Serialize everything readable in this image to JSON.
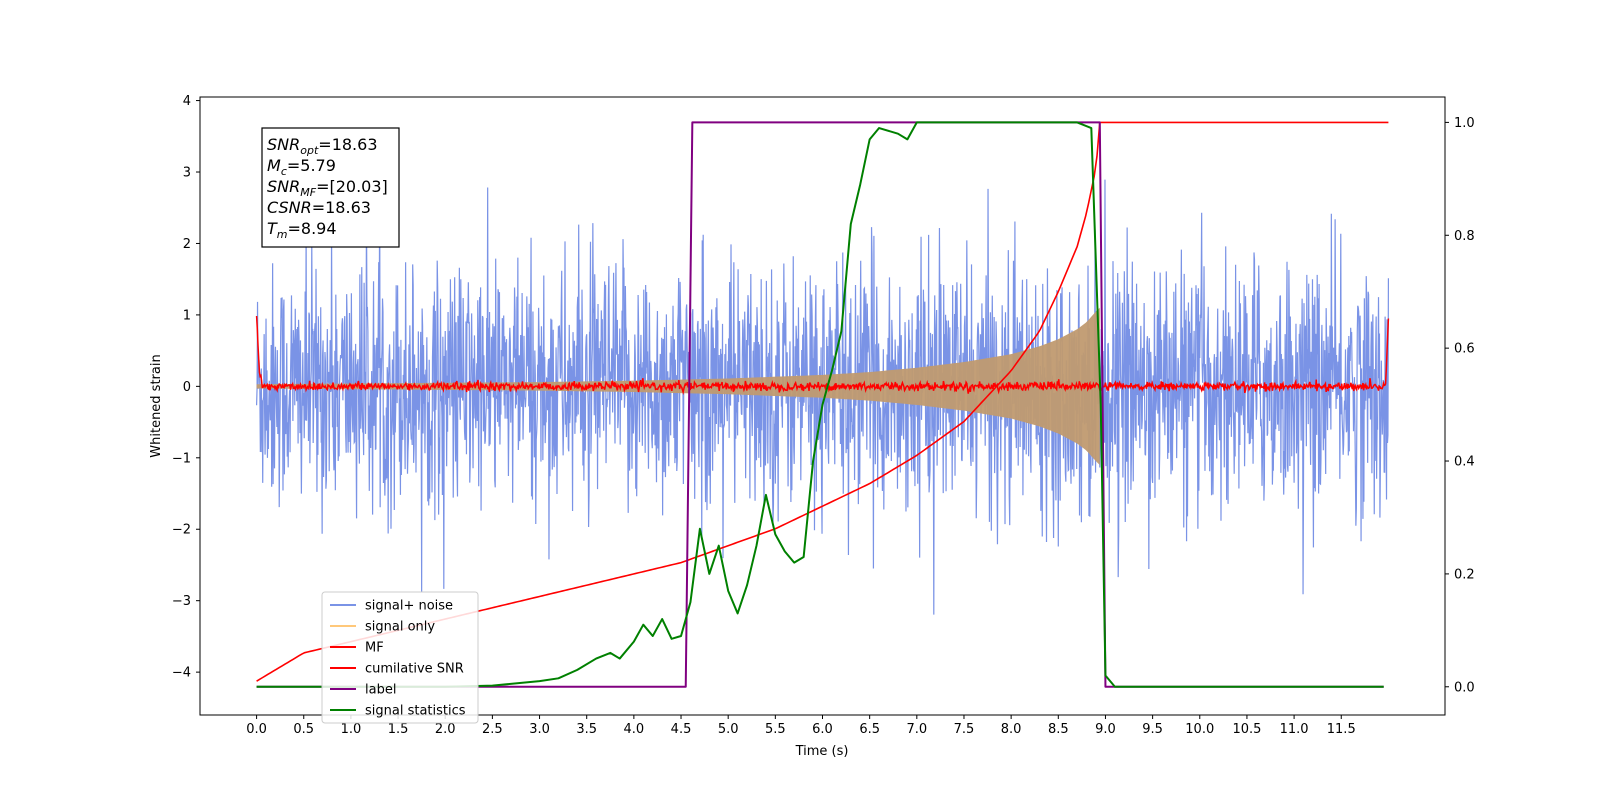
{
  "chart_data": {
    "type": "line",
    "xlabel": "Time (s)",
    "ylabel": "Whitened strain",
    "xlim": [
      -0.6,
      12.6
    ],
    "ylim": [
      -4.6,
      4.05
    ],
    "y2lim": [
      -0.05,
      1.045
    ],
    "x_ticks": [
      0.0,
      0.5,
      1.0,
      1.5,
      2.0,
      2.5,
      3.0,
      3.5,
      4.0,
      4.5,
      5.0,
      5.5,
      6.0,
      6.5,
      7.0,
      7.5,
      8.0,
      8.5,
      9.0,
      9.5,
      10.0,
      10.5,
      11.0,
      11.5
    ],
    "x_tick_labels": [
      "0.0",
      "0.5",
      "1.0",
      "1.5",
      "2.0",
      "2.5",
      "3.0",
      "3.5",
      "4.0",
      "4.5",
      "5.0",
      "5.5",
      "6.0",
      "6.5",
      "7.0",
      "7.5",
      "8.0",
      "8.5",
      "9.0",
      "9.5",
      "10.0",
      "10.5",
      "11.0",
      "11.5"
    ],
    "y_ticks": [
      4,
      3,
      2,
      1,
      0,
      -1,
      -2,
      -3,
      -4
    ],
    "y_tick_labels": [
      "4",
      "3",
      "2",
      "1",
      "0",
      "−1",
      "−2",
      "−3",
      "−4"
    ],
    "y2_ticks": [
      1.0,
      0.8,
      0.6,
      0.4,
      0.2,
      0.0
    ],
    "y2_tick_labels": [
      "1.0",
      "0.8",
      "0.6",
      "0.4",
      "0.2",
      "0.0"
    ],
    "annotation": {
      "lines": [
        {
          "base": "SNR",
          "sub": "opt",
          "value": "=18.63"
        },
        {
          "base": "M",
          "sub": "c",
          "value": "=5.79"
        },
        {
          "base": "SNR",
          "sub": "MF",
          "value": "=[20.03]"
        },
        {
          "base": "CSNR",
          "sub": "",
          "value": "=18.63"
        },
        {
          "base": "T",
          "sub": "m",
          "value": "=8.94"
        }
      ]
    },
    "legend": {
      "placement": "lower-left",
      "entries": [
        {
          "label": "signal+ noise",
          "color": "#7a93e6"
        },
        {
          "label": "signal only",
          "color": "#ffc87a"
        },
        {
          "label": "MF",
          "color": "#ff0000"
        },
        {
          "label": "cumilative SNR",
          "color": "#ff0000"
        },
        {
          "label": "label",
          "color": "#800080"
        },
        {
          "label": "signal statistics",
          "color": "#008000"
        }
      ]
    },
    "series": [
      {
        "name": "signal+ noise",
        "axis": "left",
        "color": "#7a93e6",
        "description_range": [
          0.0,
          12.0
        ],
        "approx_envelope": [
          -2.2,
          2.2
        ],
        "approx_extremes": [
          -4.15,
          3.65
        ]
      },
      {
        "name": "signal only",
        "axis": "left",
        "color": "#c09a70",
        "envelope_x": [
          0.0,
          1.0,
          2.0,
          3.0,
          4.0,
          5.0,
          6.0,
          6.5,
          7.0,
          7.5,
          8.0,
          8.3,
          8.5,
          8.7,
          8.8,
          8.9,
          8.94
        ],
        "envelope_amplitude": [
          0.03,
          0.04,
          0.05,
          0.06,
          0.08,
          0.11,
          0.16,
          0.2,
          0.26,
          0.34,
          0.45,
          0.56,
          0.66,
          0.8,
          0.9,
          1.05,
          1.1
        ]
      },
      {
        "name": "MF",
        "axis": "left",
        "color": "#ff0000",
        "x": [
          0.0,
          0.03,
          0.06,
          12.0
        ],
        "y": [
          1.0,
          0.2,
          0.0,
          0.0
        ],
        "noise_amplitude": 0.05
      },
      {
        "name": "cumilative SNR",
        "axis": "right",
        "color": "#ff0000",
        "x": [
          0.0,
          0.5,
          1.0,
          1.5,
          2.0,
          2.5,
          3.0,
          3.5,
          4.0,
          4.5,
          5.0,
          5.5,
          6.0,
          6.5,
          7.0,
          7.5,
          8.0,
          8.3,
          8.5,
          8.7,
          8.8,
          8.9,
          8.94,
          12.0
        ],
        "y": [
          0.01,
          0.06,
          0.08,
          0.1,
          0.12,
          0.14,
          0.16,
          0.18,
          0.2,
          0.22,
          0.25,
          0.28,
          0.32,
          0.36,
          0.41,
          0.47,
          0.56,
          0.63,
          0.7,
          0.78,
          0.84,
          0.92,
          1.0,
          1.0
        ]
      },
      {
        "name": "label",
        "axis": "right",
        "color": "#800080",
        "x": [
          0.0,
          4.55,
          4.62,
          8.94,
          9.0,
          11.95
        ],
        "y": [
          0.0,
          0.0,
          1.0,
          1.0,
          0.0,
          0.0
        ]
      },
      {
        "name": "signal statistics",
        "axis": "right",
        "color": "#008000",
        "x": [
          0.0,
          0.5,
          1.0,
          1.5,
          2.0,
          2.5,
          3.0,
          3.2,
          3.4,
          3.6,
          3.75,
          3.85,
          4.0,
          4.1,
          4.2,
          4.3,
          4.4,
          4.5,
          4.6,
          4.7,
          4.8,
          4.9,
          5.0,
          5.1,
          5.2,
          5.3,
          5.4,
          5.5,
          5.6,
          5.7,
          5.8,
          5.9,
          6.0,
          6.1,
          6.2,
          6.3,
          6.4,
          6.5,
          6.6,
          6.8,
          6.9,
          7.0,
          7.2,
          7.5,
          8.0,
          8.5,
          8.7,
          8.85,
          8.95,
          9.0,
          9.1,
          9.2,
          11.5,
          11.95
        ],
        "y": [
          0.0,
          0.0,
          0.0,
          0.0,
          0.0,
          0.002,
          0.01,
          0.015,
          0.03,
          0.05,
          0.06,
          0.05,
          0.08,
          0.11,
          0.09,
          0.12,
          0.085,
          0.09,
          0.15,
          0.28,
          0.2,
          0.25,
          0.17,
          0.13,
          0.18,
          0.25,
          0.34,
          0.27,
          0.24,
          0.22,
          0.23,
          0.4,
          0.5,
          0.56,
          0.63,
          0.82,
          0.89,
          0.97,
          0.99,
          0.98,
          0.97,
          1.0,
          1.0,
          1.0,
          1.0,
          1.0,
          1.0,
          0.99,
          0.5,
          0.02,
          0.0,
          0.0,
          0.0,
          0.0
        ]
      }
    ]
  }
}
